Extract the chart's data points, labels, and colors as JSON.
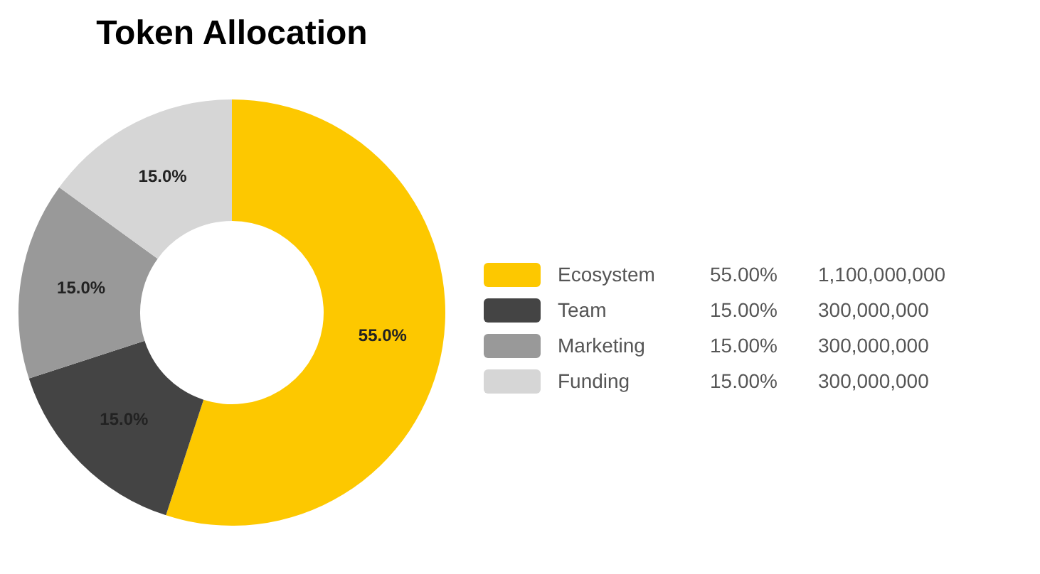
{
  "chart_data": {
    "type": "donut",
    "title": "Token Allocation",
    "categories": [
      "Ecosystem",
      "Team",
      "Marketing",
      "Funding"
    ],
    "values": [
      55,
      15,
      15,
      15
    ],
    "colors": [
      "#fdc800",
      "#444444",
      "#999999",
      "#d6d6d6"
    ],
    "value_labels": [
      "55.0%",
      "15.0%",
      "15.0%",
      "15.0%"
    ],
    "annotations": [
      "55.00%",
      "15.00%",
      "15.00%",
      "15.00%",
      "1,100,000,000",
      "300,000,000",
      "300,000,000",
      "300,000,000"
    ],
    "legend": "right"
  }
}
